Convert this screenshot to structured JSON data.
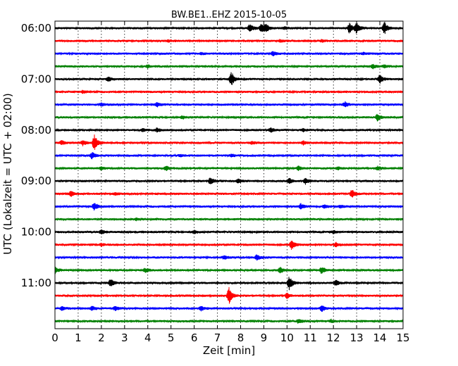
{
  "chart_data": {
    "type": "line",
    "title": "BW.BE1..EHZ 2015-10-05",
    "xlabel": "Zeit  [min]",
    "ylabel": "UTC (Lokalzeit = UTC + 02:00)",
    "xlim": [
      0,
      15
    ],
    "x_ticks": [
      "0",
      "1",
      "2",
      "3",
      "4",
      "5",
      "6",
      "7",
      "8",
      "9",
      "10",
      "11",
      "12",
      "13",
      "14",
      "15"
    ],
    "y_tick_labels": [
      "06:00",
      "07:00",
      "08:00",
      "09:00",
      "10:00",
      "11:00"
    ],
    "grid": "vertical dotted",
    "colors": [
      "#000000",
      "#ff0000",
      "#0000ff",
      "#008000"
    ],
    "trace_start_times": [
      "06:00",
      "06:15",
      "06:30",
      "06:45",
      "07:00",
      "07:15",
      "07:30",
      "07:45",
      "08:00",
      "08:15",
      "08:30",
      "08:45",
      "09:00",
      "09:15",
      "09:30",
      "09:45",
      "10:00",
      "10:15",
      "10:30",
      "10:45",
      "11:00",
      "11:15",
      "11:30",
      "11:45"
    ],
    "events": [
      [
        [
          8.4,
          6
        ],
        [
          8.9,
          6
        ],
        [
          9.1,
          5
        ],
        [
          9.9,
          2
        ],
        [
          12.7,
          8
        ],
        [
          13.0,
          7
        ],
        [
          14.2,
          9
        ]
      ],
      [
        [
          4.9,
          1.5
        ],
        [
          9.7,
          2
        ],
        [
          11.5,
          1.5
        ]
      ],
      [
        [
          6.3,
          1.5
        ],
        [
          9.4,
          3
        ],
        [
          13.3,
          1.5
        ]
      ],
      [
        [
          4.0,
          2
        ],
        [
          13.7,
          3
        ],
        [
          14.2,
          2
        ]
      ],
      [
        [
          2.3,
          3
        ],
        [
          7.6,
          10
        ],
        [
          14.0,
          6
        ]
      ],
      [
        [
          1.2,
          2
        ]
      ],
      [
        [
          2.0,
          2
        ],
        [
          4.4,
          3
        ],
        [
          12.5,
          4
        ]
      ],
      [
        [
          5.5,
          2
        ],
        [
          13.9,
          5
        ]
      ],
      [
        [
          3.8,
          2
        ],
        [
          4.4,
          3
        ],
        [
          9.3,
          3
        ],
        [
          10.7,
          2
        ]
      ],
      [
        [
          0.3,
          3
        ],
        [
          1.2,
          4
        ],
        [
          1.7,
          11
        ],
        [
          8.5,
          2
        ],
        [
          10.7,
          3
        ]
      ],
      [
        [
          1.6,
          5
        ],
        [
          5.4,
          1.5
        ],
        [
          7.6,
          2
        ]
      ],
      [
        [
          2.0,
          2
        ],
        [
          4.8,
          3
        ],
        [
          10.5,
          3
        ],
        [
          12.2,
          2
        ],
        [
          13.9,
          3
        ]
      ],
      [
        [
          6.7,
          6
        ],
        [
          7.9,
          3
        ],
        [
          10.1,
          4
        ],
        [
          10.8,
          4
        ]
      ],
      [
        [
          0.7,
          4
        ],
        [
          2.6,
          2
        ],
        [
          12.8,
          6
        ]
      ],
      [
        [
          1.7,
          6
        ],
        [
          10.6,
          4
        ],
        [
          11.6,
          3
        ],
        [
          12.3,
          2
        ]
      ],
      [
        [
          3.5,
          1.5
        ]
      ],
      [
        [
          2.0,
          3
        ],
        [
          6.0,
          2
        ],
        [
          12.0,
          2
        ]
      ],
      [
        [
          2.0,
          2
        ],
        [
          10.2,
          7
        ],
        [
          12.1,
          3
        ]
      ],
      [
        [
          7.3,
          3
        ],
        [
          8.7,
          4
        ]
      ],
      [
        [
          0.0,
          5
        ],
        [
          3.9,
          3
        ],
        [
          9.7,
          4
        ],
        [
          11.5,
          5
        ]
      ],
      [
        [
          2.4,
          6
        ],
        [
          10.1,
          10
        ],
        [
          12.1,
          4
        ]
      ],
      [
        [
          7.5,
          12
        ],
        [
          10.0,
          4
        ]
      ],
      [
        [
          0.3,
          3
        ],
        [
          1.6,
          3
        ],
        [
          2.6,
          3
        ],
        [
          6.3,
          3
        ],
        [
          11.5,
          4
        ]
      ],
      [
        [
          10.5,
          3
        ],
        [
          11.9,
          2
        ]
      ]
    ]
  }
}
